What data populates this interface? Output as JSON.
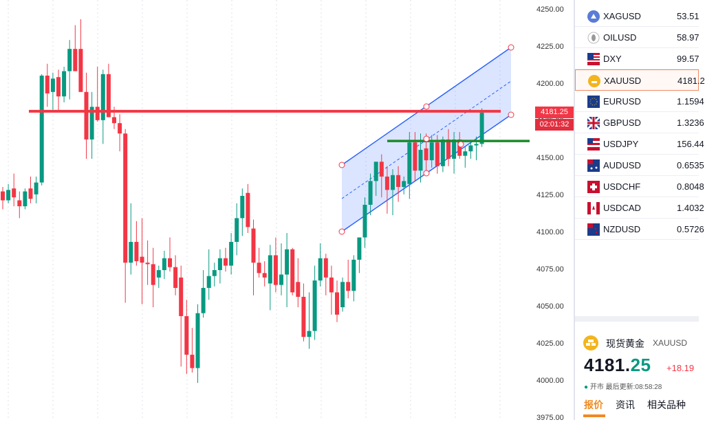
{
  "chart": {
    "y_ticks": [
      "4250.00",
      "4225.00",
      "4200.00",
      "4175.00",
      "4150.00",
      "4125.00",
      "4100.00",
      "4075.00",
      "4050.00",
      "4025.00",
      "4000.00",
      "3975.00"
    ],
    "current_price": "4181.25",
    "countdown": "02:01:32",
    "colors": {
      "up": "#089981",
      "down": "#f23645",
      "channel": "#2962ff",
      "horizontal_red": "#f23645",
      "horizontal_green": "#1b8a2a"
    },
    "candles_ohlc": [
      [
        4128,
        4131,
        4116,
        4122
      ],
      [
        4122,
        4133,
        4120,
        4129
      ],
      [
        4130,
        4140,
        4118,
        4124
      ],
      [
        4122,
        4128,
        4110,
        4118
      ],
      [
        4118,
        4130,
        4116,
        4128
      ],
      [
        4130,
        4138,
        4120,
        4123
      ],
      [
        4126,
        4138,
        4120,
        4134
      ],
      [
        4134,
        4207,
        4132,
        4206
      ],
      [
        4206,
        4214,
        4185,
        4194
      ],
      [
        4195,
        4208,
        4183,
        4204
      ],
      [
        4205,
        4210,
        4182,
        4192
      ],
      [
        4192,
        4212,
        4188,
        4209
      ],
      [
        4209,
        4230,
        4190,
        4224
      ],
      [
        4224,
        4240,
        4212,
        4209
      ],
      [
        4224,
        4244,
        4198,
        4195
      ],
      [
        4195,
        4208,
        4150,
        4163
      ],
      [
        4163,
        4195,
        4150,
        4185
      ],
      [
        4185,
        4212,
        4175,
        4176
      ],
      [
        4176,
        4210,
        4160,
        4207
      ],
      [
        4207,
        4214,
        4178,
        4178
      ],
      [
        4178,
        4185,
        4170,
        4174
      ],
      [
        4174,
        4180,
        4155,
        4167
      ],
      [
        4167,
        4170,
        4053,
        4080
      ],
      [
        4080,
        4120,
        4072,
        4094
      ],
      [
        4094,
        4108,
        4078,
        4081
      ],
      [
        4084,
        4110,
        4052,
        4080
      ],
      [
        4080,
        4095,
        4065,
        4079
      ],
      [
        4079,
        4090,
        4050,
        4065
      ],
      [
        4070,
        4078,
        4063,
        4075
      ],
      [
        4075,
        4088,
        4069,
        4083
      ],
      [
        4083,
        4097,
        4074,
        4077
      ],
      [
        4077,
        4085,
        4058,
        4063
      ],
      [
        4070,
        4078,
        4010,
        4044
      ],
      [
        4044,
        4055,
        4005,
        4018
      ],
      [
        4018,
        4036,
        4006,
        4009
      ],
      [
        4009,
        4052,
        3999,
        4046
      ],
      [
        4046,
        4075,
        4043,
        4063
      ],
      [
        4063,
        4089,
        4055,
        4071
      ],
      [
        4071,
        4080,
        4064,
        4075
      ],
      [
        4075,
        4089,
        4066,
        4083
      ],
      [
        4083,
        4090,
        4074,
        4078
      ],
      [
        4078,
        4100,
        4072,
        4094
      ],
      [
        4094,
        4120,
        4085,
        4110
      ],
      [
        4110,
        4130,
        4098,
        4125
      ],
      [
        4127,
        4133,
        4100,
        4104
      ],
      [
        4103,
        4109,
        4058,
        4080
      ],
      [
        4080,
        4090,
        4070,
        4073
      ],
      [
        4073,
        4081,
        4064,
        4070
      ],
      [
        4066,
        4092,
        4048,
        4085
      ],
      [
        4085,
        4097,
        4060,
        4065
      ],
      [
        4065,
        4093,
        4058,
        4072
      ],
      [
        4072,
        4100,
        4050,
        4089
      ],
      [
        4089,
        4090,
        4058,
        4060
      ],
      [
        4067,
        4083,
        4050,
        4057
      ],
      [
        4057,
        4066,
        4027,
        4030
      ],
      [
        4030,
        4060,
        4022,
        4034
      ],
      [
        4034,
        4078,
        4028,
        4068
      ],
      [
        4068,
        4093,
        4064,
        4083
      ],
      [
        4083,
        4086,
        4058,
        4070
      ],
      [
        4070,
        4078,
        4045,
        4060
      ],
      [
        4060,
        4068,
        4040,
        4045
      ],
      [
        4050,
        4070,
        4047,
        4067
      ],
      [
        4067,
        4082,
        4056,
        4061
      ],
      [
        4061,
        4085,
        4054,
        4082
      ],
      [
        4082,
        4096,
        4073,
        4097
      ],
      [
        4097,
        4124,
        4090,
        4119
      ],
      [
        4119,
        4140,
        4112,
        4135
      ],
      [
        4135,
        4148,
        4125,
        4148
      ],
      [
        4148,
        4153,
        4124,
        4138
      ],
      [
        4138,
        4145,
        4113,
        4129
      ],
      [
        4129,
        4143,
        4112,
        4139
      ],
      [
        4139,
        4145,
        4121,
        4131
      ],
      [
        4131,
        4138,
        4126,
        4135
      ],
      [
        4133,
        4168,
        4123,
        4161
      ],
      [
        4161,
        4168,
        4135,
        4142
      ],
      [
        4142,
        4167,
        4134,
        4156
      ],
      [
        4157,
        4167,
        4140,
        4149
      ],
      [
        4149,
        4166,
        4144,
        4161
      ],
      [
        4161,
        4166,
        4140,
        4145
      ],
      [
        4145,
        4165,
        4141,
        4163
      ],
      [
        4163,
        4170,
        4145,
        4150
      ],
      [
        4150,
        4168,
        4140,
        4163
      ],
      [
        4163,
        4168,
        4150,
        4152
      ],
      [
        4152,
        4158,
        4144,
        4155
      ],
      [
        4155,
        4161,
        4150,
        4159
      ],
      [
        4159,
        4165,
        4149,
        4160
      ],
      [
        4160,
        4184,
        4158,
        4181
      ]
    ]
  },
  "watchlist": [
    {
      "symbol": "XAGUSD",
      "price": "53.51",
      "flag": "silver"
    },
    {
      "symbol": "OILUSD",
      "price": "58.97",
      "flag": "oil"
    },
    {
      "symbol": "DXY",
      "price": "99.57",
      "flag": "us"
    },
    {
      "symbol": "XAUUSD",
      "price": "4181.2",
      "flag": "gold",
      "selected": true
    },
    {
      "symbol": "EURUSD",
      "price": "1.1594",
      "flag": "eu"
    },
    {
      "symbol": "GBPUSD",
      "price": "1.3236",
      "flag": "gb"
    },
    {
      "symbol": "USDJPY",
      "price": "156.44",
      "flag": "us-jp"
    },
    {
      "symbol": "AUDUSD",
      "price": "0.6535",
      "flag": "au"
    },
    {
      "symbol": "USDCHF",
      "price": "0.8048",
      "flag": "us-ch"
    },
    {
      "symbol": "USDCAD",
      "price": "1.4032",
      "flag": "us-ca"
    },
    {
      "symbol": "NZDUSD",
      "price": "0.5726",
      "flag": "nz"
    }
  ],
  "detail": {
    "name": "现货黄金",
    "symbol": "XAUUSD",
    "price_int": "4181.",
    "price_dec": "25",
    "change": "+18.19",
    "status_dot": "●",
    "status": "开市 最后更新:08:58:28",
    "tabs": [
      "报价",
      "资讯",
      "相关品种"
    ]
  }
}
